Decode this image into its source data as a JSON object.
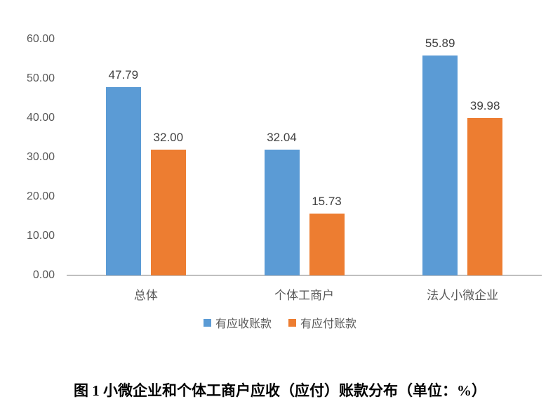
{
  "figure": {
    "caption": "图 1 小微企业和个体工商户应收（应付）账款分布（单位：%）"
  },
  "chart_data": {
    "type": "bar",
    "categories": [
      "总体",
      "个体工商户",
      "法人小微企业"
    ],
    "series": [
      {
        "name": "有应收账款",
        "color": "#5B9BD5",
        "values": [
          47.79,
          32.04,
          55.89
        ]
      },
      {
        "name": "有应付账款",
        "color": "#ED7D31",
        "values": [
          32.0,
          15.73,
          39.98
        ]
      }
    ],
    "data_labels": [
      "47.79",
      "32.00",
      "32.04",
      "15.73",
      "55.89",
      "39.98"
    ],
    "ylim": [
      0,
      60
    ],
    "y_ticks": [
      "60.00",
      "50.00",
      "40.00",
      "30.00",
      "20.00",
      "10.00",
      "0.00"
    ],
    "grid": false,
    "legend_position": "bottom",
    "title": "图 1 小微企业和个体工商户应收（应付）账款分布（单位：%）",
    "xlabel": "",
    "ylabel": ""
  },
  "colors": {
    "series_blue": "#5B9BD5",
    "series_orange": "#ED7D31",
    "axis_line": "#BFBFBF",
    "tick_text": "#595959",
    "value_text": "#404040"
  }
}
